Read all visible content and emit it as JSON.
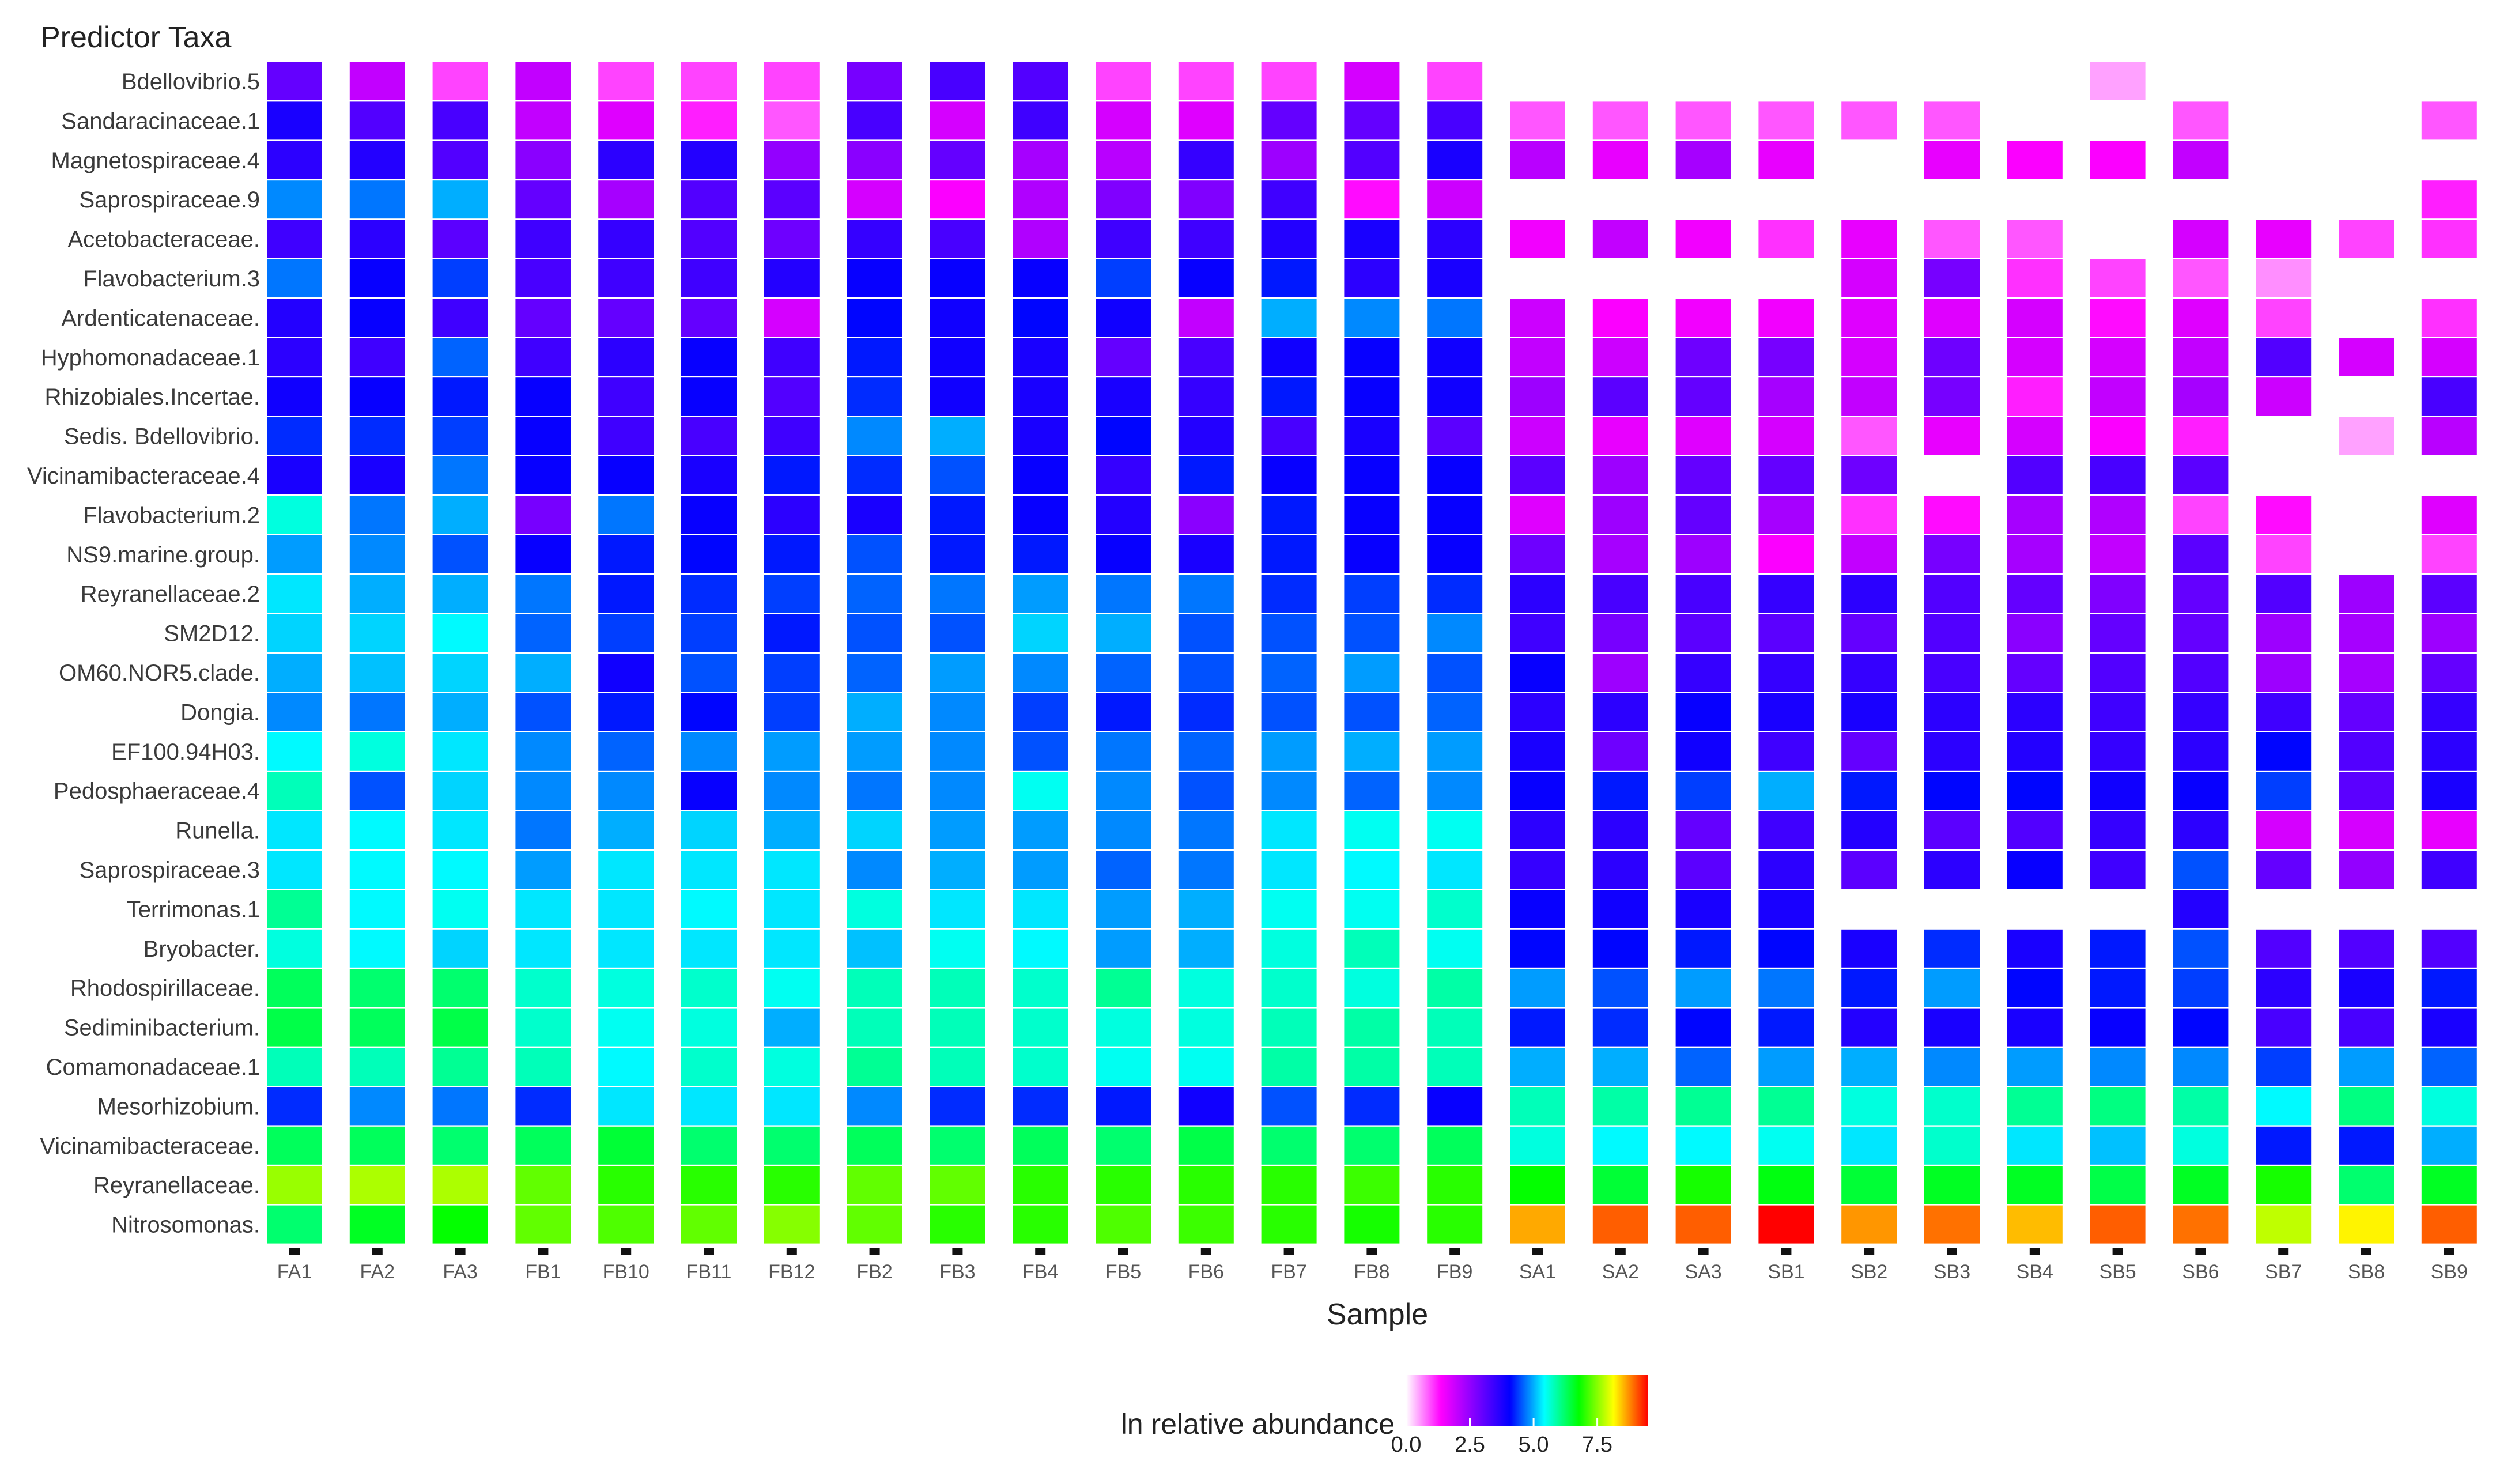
{
  "chart_data": {
    "type": "heatmap",
    "title": "",
    "ylabel": "Predictor Taxa",
    "xlabel": "Sample",
    "legend": {
      "title": "ln relative abundance",
      "ticks": [
        "0.0",
        "2.5",
        "5.0",
        "7.5"
      ],
      "range": [
        0,
        9.5
      ],
      "placement": "bottom-center"
    },
    "colorscale": [
      "#ffffff",
      "#ff00ff",
      "#7f00ff",
      "#0000ff",
      "#00ffff",
      "#00ff00",
      "#ffff00",
      "#ff0000"
    ],
    "samples": [
      "FA1",
      "FA2",
      "FA3",
      "FB1",
      "FB10",
      "FB11",
      "FB12",
      "FB2",
      "FB3",
      "FB4",
      "FB5",
      "FB6",
      "FB7",
      "FB8",
      "FB9",
      "SA1",
      "SA2",
      "SA3",
      "SB1",
      "SB2",
      "SB3",
      "SB4",
      "SB5",
      "SB6",
      "SB7",
      "SB8",
      "SB9"
    ],
    "taxa": [
      "Bdellovibrio.5",
      "Sandaracinaceae.1",
      "Magnetospiraceae.4",
      "Saprospiraceae.9",
      "Acetobacteraceae.",
      "Flavobacterium.3",
      "Ardenticatenaceae.",
      "Hyphomonadaceae.1",
      "Rhizobiales.Incertae.",
      "Sedis. Bdellovibrio.",
      "Vicinamibacteraceae.4",
      "Flavobacterium.2",
      "NS9.marine.group.",
      "Reyranellaceae.2",
      "SM2D12.",
      "OM60.NOR5.clade.",
      "Dongia.",
      "EF100.94H03.",
      "Pedosphaeraceae.4",
      "Runella.",
      "Saprospiraceae.3",
      "Terrimonas.1",
      "Bryobacter.",
      "Rhodospirillaceae.",
      "Sediminibacterium.",
      "Comamonadaceae.1",
      "Mesorhizobium.",
      "Vicinamibacteraceae.",
      "Reyranellaceae.",
      "Nitrosomonas."
    ],
    "values": [
      [
        3.0,
        2.0,
        1.0,
        2.0,
        1.0,
        1.0,
        1.0,
        2.8,
        3.3,
        3.2,
        1.0,
        1.0,
        1.0,
        1.8,
        1.0,
        null,
        null,
        null,
        null,
        null,
        null,
        null,
        0.5,
        null,
        null,
        null,
        null
      ],
      [
        3.8,
        3.2,
        3.3,
        2.0,
        1.7,
        1.2,
        0.9,
        3.3,
        1.8,
        3.4,
        1.8,
        1.7,
        3.0,
        3.0,
        3.3,
        0.9,
        0.9,
        0.9,
        0.9,
        0.9,
        0.9,
        null,
        null,
        0.9,
        null,
        null,
        0.9
      ],
      [
        3.6,
        3.7,
        3.2,
        2.6,
        3.6,
        3.7,
        2.5,
        2.6,
        3.0,
        2.3,
        2.1,
        3.5,
        2.4,
        3.2,
        3.8,
        2.1,
        1.6,
        2.3,
        1.6,
        null,
        1.6,
        1.4,
        1.4,
        2.0,
        null,
        null,
        null
      ],
      [
        4.8,
        4.7,
        5.0,
        3.0,
        2.3,
        3.2,
        3.1,
        1.8,
        1.4,
        2.2,
        2.7,
        2.7,
        3.4,
        1.3,
        1.9,
        null,
        null,
        null,
        null,
        null,
        null,
        null,
        null,
        null,
        null,
        null,
        1.2
      ],
      [
        3.4,
        3.6,
        3.1,
        3.4,
        3.5,
        3.2,
        2.9,
        3.5,
        3.3,
        2.2,
        3.4,
        3.4,
        3.7,
        3.8,
        3.6,
        1.5,
        2.0,
        1.5,
        1.1,
        1.6,
        0.9,
        0.9,
        null,
        1.8,
        1.6,
        1.0,
        1.1
      ],
      [
        4.7,
        4.0,
        4.4,
        3.3,
        3.4,
        3.4,
        3.7,
        4.0,
        4.0,
        4.0,
        4.4,
        4.0,
        4.2,
        3.6,
        3.8,
        null,
        null,
        null,
        null,
        1.8,
        2.8,
        1.1,
        1.0,
        0.9,
        0.6,
        null,
        null
      ],
      [
        3.7,
        4.0,
        3.4,
        3.0,
        3.0,
        3.0,
        1.8,
        4.1,
        3.9,
        4.1,
        3.9,
        2.0,
        5.0,
        4.8,
        4.7,
        1.9,
        1.4,
        1.5,
        1.5,
        1.7,
        1.7,
        1.8,
        1.3,
        1.7,
        1.0,
        null,
        1.1
      ],
      [
        3.6,
        3.4,
        4.6,
        3.4,
        3.6,
        4.0,
        3.4,
        4.2,
        3.9,
        3.8,
        3.0,
        3.3,
        3.9,
        4.0,
        3.9,
        2.0,
        1.9,
        2.9,
        2.8,
        1.8,
        2.9,
        1.8,
        1.8,
        2.0,
        3.2,
        1.8,
        1.8
      ],
      [
        3.9,
        4.0,
        4.2,
        4.0,
        3.4,
        4.0,
        3.2,
        4.3,
        3.9,
        3.8,
        3.8,
        3.5,
        4.2,
        4.0,
        3.9,
        2.4,
        3.1,
        3.0,
        2.3,
        2.0,
        2.8,
        1.2,
        2.0,
        2.3,
        1.9,
        null,
        3.3
      ],
      [
        4.3,
        4.3,
        4.4,
        4.0,
        3.4,
        3.3,
        3.4,
        4.8,
        5.0,
        3.8,
        4.1,
        3.7,
        3.3,
        3.8,
        3.1,
        1.9,
        1.6,
        1.7,
        1.8,
        0.9,
        1.6,
        1.8,
        1.4,
        1.2,
        null,
        0.5,
        2.1
      ],
      [
        3.8,
        3.8,
        4.7,
        4.0,
        4.0,
        3.8,
        4.2,
        4.3,
        4.5,
        4.0,
        3.5,
        4.2,
        4.0,
        4.0,
        4.0,
        3.1,
        2.4,
        3.0,
        3.0,
        2.9,
        null,
        3.2,
        3.3,
        3.1,
        null,
        null,
        null
      ],
      [
        5.6,
        4.7,
        5.0,
        2.8,
        4.7,
        4.0,
        3.6,
        3.8,
        4.2,
        4.0,
        3.7,
        2.6,
        4.2,
        4.0,
        4.0,
        1.7,
        2.4,
        3.0,
        2.3,
        1.1,
        1.3,
        2.3,
        2.2,
        1.0,
        1.3,
        null,
        1.7
      ],
      [
        4.9,
        4.8,
        4.5,
        4.0,
        4.2,
        4.1,
        4.2,
        4.5,
        4.2,
        4.2,
        4.0,
        3.8,
        4.2,
        4.0,
        4.0,
        2.9,
        2.3,
        2.4,
        1.4,
        2.0,
        2.8,
        2.3,
        2.0,
        3.1,
        1.0,
        null,
        1.0
      ],
      [
        5.3,
        5.0,
        5.0,
        4.7,
        4.2,
        4.3,
        4.4,
        4.6,
        4.7,
        4.9,
        4.7,
        4.7,
        4.3,
        4.4,
        4.3,
        3.6,
        3.3,
        3.3,
        3.5,
        3.6,
        3.2,
        3.0,
        2.7,
        3.0,
        3.2,
        2.4,
        3.1
      ],
      [
        5.2,
        5.2,
        5.4,
        4.6,
        4.4,
        4.4,
        4.2,
        4.5,
        4.5,
        5.2,
        5.0,
        4.5,
        4.5,
        4.5,
        4.8,
        3.4,
        2.8,
        3.1,
        3.1,
        3.0,
        3.2,
        2.6,
        3.0,
        3.0,
        2.4,
        2.3,
        2.4
      ],
      [
        5.0,
        5.1,
        5.2,
        5.0,
        3.9,
        4.5,
        4.4,
        4.6,
        4.9,
        4.8,
        4.6,
        4.5,
        4.6,
        4.9,
        4.5,
        4.0,
        2.4,
        3.5,
        3.5,
        3.5,
        3.3,
        3.0,
        3.2,
        3.2,
        2.4,
        2.3,
        3.0
      ],
      [
        4.8,
        4.7,
        5.0,
        4.5,
        4.2,
        4.1,
        4.4,
        5.0,
        4.8,
        4.4,
        4.2,
        4.3,
        4.5,
        4.5,
        4.6,
        3.6,
        3.6,
        4.0,
        3.8,
        3.8,
        3.6,
        3.6,
        3.4,
        3.5,
        3.4,
        3.0,
        3.5
      ],
      [
        5.4,
        5.6,
        5.3,
        4.8,
        4.6,
        4.8,
        4.9,
        4.9,
        4.8,
        4.5,
        4.7,
        4.6,
        4.9,
        5.0,
        4.9,
        3.8,
        2.9,
        3.9,
        3.4,
        3.0,
        3.6,
        3.7,
        3.5,
        3.6,
        4.1,
        3.2,
        3.6
      ],
      [
        5.8,
        4.5,
        5.2,
        4.8,
        4.8,
        4.0,
        4.8,
        4.7,
        4.8,
        5.5,
        4.8,
        4.5,
        4.8,
        4.6,
        4.8,
        4.0,
        4.2,
        4.4,
        5.0,
        4.2,
        4.1,
        4.1,
        3.9,
        4.0,
        4.4,
        3.1,
        3.8
      ],
      [
        5.3,
        5.4,
        5.3,
        4.7,
        5.0,
        5.2,
        5.0,
        5.2,
        4.9,
        4.9,
        4.8,
        4.7,
        5.3,
        5.5,
        5.5,
        3.6,
        3.6,
        3.0,
        3.4,
        3.7,
        3.1,
        3.2,
        3.5,
        3.6,
        1.8,
        1.8,
        1.6
      ],
      [
        5.3,
        5.4,
        5.4,
        4.9,
        5.3,
        5.3,
        5.3,
        4.8,
        5.0,
        4.9,
        4.6,
        4.7,
        5.3,
        5.4,
        5.3,
        3.5,
        3.6,
        3.1,
        3.6,
        3.1,
        3.6,
        4.0,
        3.4,
        4.5,
        3.0,
        2.5,
        3.4
      ],
      [
        6.0,
        5.4,
        5.5,
        5.3,
        5.3,
        5.4,
        5.3,
        5.6,
        5.3,
        5.3,
        4.9,
        5.0,
        5.5,
        5.5,
        5.7,
        4.0,
        3.9,
        3.8,
        3.8,
        null,
        null,
        null,
        null,
        3.7,
        null,
        null,
        null
      ],
      [
        5.6,
        5.4,
        5.2,
        5.3,
        5.3,
        5.3,
        5.3,
        5.1,
        5.5,
        5.4,
        4.9,
        5.0,
        5.6,
        5.8,
        5.5,
        4.1,
        4.1,
        4.2,
        4.1,
        3.8,
        4.3,
        3.8,
        4.2,
        4.5,
        3.2,
        3.2,
        3.2
      ],
      [
        6.3,
        6.2,
        6.2,
        5.7,
        5.6,
        5.7,
        5.5,
        5.8,
        5.8,
        5.7,
        6.0,
        5.6,
        5.7,
        5.6,
        5.9,
        4.9,
        4.5,
        4.9,
        4.7,
        4.2,
        4.9,
        4.1,
        4.2,
        4.4,
        3.6,
        3.8,
        4.2
      ],
      [
        6.4,
        6.3,
        6.4,
        5.7,
        5.5,
        5.6,
        5.0,
        5.8,
        5.8,
        5.7,
        5.6,
        5.6,
        5.8,
        5.9,
        5.8,
        4.2,
        4.3,
        4.1,
        4.2,
        3.7,
        3.8,
        3.8,
        4.0,
        4.1,
        3.3,
        3.3,
        3.8
      ],
      [
        5.8,
        5.8,
        6.0,
        5.8,
        5.4,
        5.7,
        5.6,
        6.0,
        5.8,
        5.7,
        5.5,
        5.5,
        5.9,
        5.9,
        5.8,
        5.0,
        5.0,
        4.6,
        4.9,
        5.0,
        4.8,
        4.9,
        4.8,
        4.8,
        4.4,
        4.9,
        4.6
      ],
      [
        4.3,
        4.8,
        4.7,
        4.3,
        5.3,
        5.3,
        5.3,
        4.8,
        4.3,
        4.3,
        4.2,
        3.9,
        4.5,
        4.3,
        4.0,
        5.8,
        5.9,
        6.0,
        6.0,
        5.6,
        5.7,
        6.0,
        6.1,
        5.9,
        5.4,
        6.1,
        5.6
      ],
      [
        6.3,
        6.3,
        6.2,
        6.3,
        6.5,
        6.2,
        6.2,
        6.3,
        6.2,
        6.3,
        6.2,
        6.4,
        6.2,
        6.2,
        6.3,
        5.6,
        5.4,
        5.4,
        5.5,
        5.3,
        5.7,
        5.3,
        5.1,
        5.6,
        4.2,
        4.2,
        5.0
      ],
      [
        7.6,
        7.7,
        7.7,
        7.3,
        7.0,
        7.0,
        7.0,
        7.3,
        7.3,
        7.0,
        7.0,
        7.0,
        7.0,
        7.1,
        7.0,
        6.8,
        6.5,
        6.9,
        6.7,
        6.5,
        6.6,
        6.6,
        6.4,
        6.6,
        6.9,
        6.2,
        6.6
      ],
      [
        6.2,
        6.6,
        6.8,
        7.3,
        7.2,
        7.3,
        7.5,
        7.3,
        7.0,
        7.0,
        7.2,
        7.1,
        7.0,
        6.9,
        7.0,
        8.6,
        9.0,
        9.0,
        9.5,
        8.7,
        8.9,
        8.5,
        9.0,
        8.9,
        7.8,
        8.2,
        9.0
      ]
    ]
  }
}
